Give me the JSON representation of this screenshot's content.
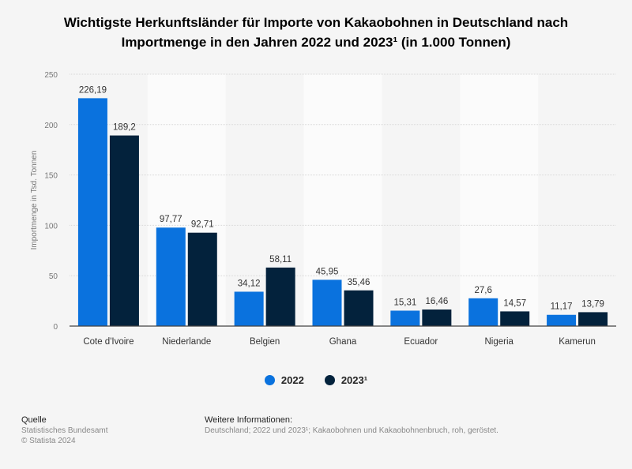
{
  "chart_data": {
    "type": "bar",
    "title": "Wichtigste Herkunftsländer für Importe von Kakaobohnen in Deutschland nach Importmenge in den Jahren 2022 und 2023¹ (in 1.000 Tonnen)",
    "title_lines": [
      "Wichtigste Herkunftsländer für Importe von Kakaobohnen in Deutschland nach",
      "Importmenge in den Jahren 2022 und 2023¹ (in 1.000 Tonnen)"
    ],
    "ylabel": "Importmenge in Tsd. Tonnen",
    "xlabel": "",
    "ylim": [
      0,
      250
    ],
    "yticks": [
      0,
      50,
      100,
      150,
      200,
      250
    ],
    "grid": true,
    "legend_position": "bottom",
    "categories": [
      "Cote d'Ivoire",
      "Niederlande",
      "Belgien",
      "Ghana",
      "Ecuador",
      "Nigeria",
      "Kamerun"
    ],
    "series": [
      {
        "name": "2022",
        "color": "#0a72de",
        "values": [
          226.19,
          97.77,
          34.12,
          45.95,
          15.31,
          27.6,
          11.17
        ],
        "labels": [
          "226,19",
          "97,77",
          "34,12",
          "45,95",
          "15,31",
          "27,6",
          "11,17"
        ]
      },
      {
        "name": "2023¹",
        "color": "#03223c",
        "values": [
          189.2,
          92.71,
          58.11,
          35.46,
          16.46,
          14.57,
          13.79
        ],
        "labels": [
          "189,2",
          "92,71",
          "58,11",
          "35,46",
          "16,46",
          "14,57",
          "13,79"
        ]
      }
    ]
  },
  "footer": {
    "source_heading": "Quelle",
    "source": "Statistisches Bundesamt",
    "copyright": "© Statista 2024",
    "info_heading": "Weitere Informationen:",
    "info": "Deutschland; 2022 und 2023¹; Kakaobohnen und Kakaobohnenbruch, roh, geröstet."
  }
}
